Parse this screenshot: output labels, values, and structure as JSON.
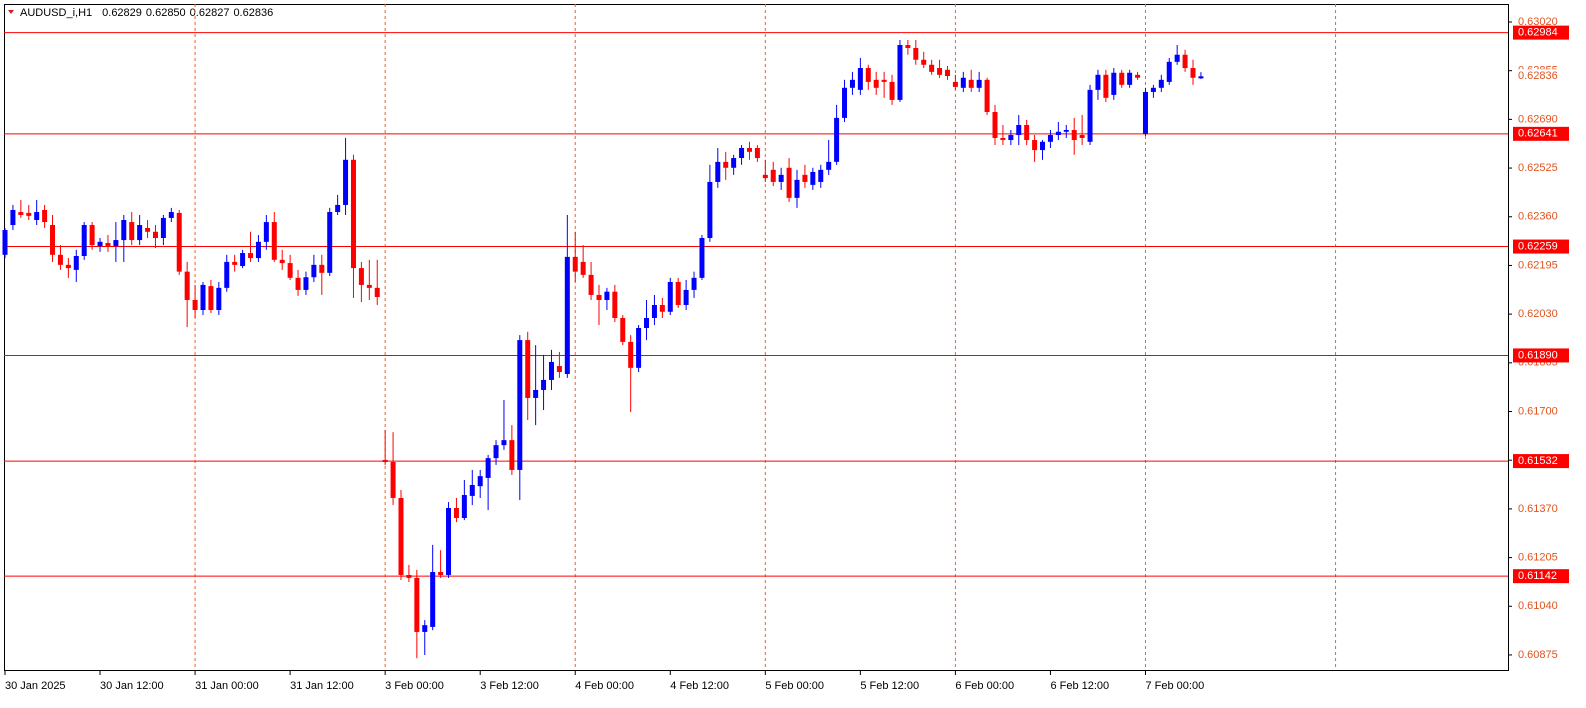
{
  "chart_data": {
    "type": "candlestick",
    "title": "AUDUSD_i,H1",
    "ohlc_labels": [
      "0.62829",
      "0.62850",
      "0.62827",
      "0.62836"
    ],
    "categories": [
      "30 Jan 2025",
      null,
      null,
      null,
      null,
      null,
      null,
      null,
      null,
      null,
      null,
      null,
      "30 Jan 12:00",
      null,
      null,
      null,
      null,
      null,
      null,
      null,
      null,
      null,
      null,
      null,
      "31 Jan 00:00",
      null,
      null,
      null,
      null,
      null,
      null,
      null,
      null,
      null,
      null,
      null,
      "31 Jan 12:00",
      null,
      null,
      null,
      null,
      null,
      null,
      null,
      null,
      null,
      null,
      null,
      "3 Feb 00:00",
      null,
      null,
      null,
      null,
      null,
      null,
      null,
      null,
      null,
      null,
      null,
      "3 Feb 12:00",
      null,
      null,
      null,
      null,
      null,
      null,
      null,
      null,
      null,
      null,
      null,
      "4 Feb 00:00",
      null,
      null,
      null,
      null,
      null,
      null,
      null,
      null,
      null,
      null,
      null,
      "4 Feb 12:00",
      null,
      null,
      null,
      null,
      null,
      null,
      null,
      null,
      null,
      null,
      null,
      "5 Feb 00:00",
      null,
      null,
      null,
      null,
      null,
      null,
      null,
      null,
      null,
      null,
      null,
      "5 Feb 12:00",
      null,
      null,
      null,
      null,
      null,
      null,
      null,
      null,
      null,
      null,
      null,
      "6 Feb 00:00",
      null,
      null,
      null,
      null,
      null,
      null,
      null,
      null,
      null,
      null,
      null,
      "6 Feb 12:00",
      null,
      null,
      null,
      null,
      null,
      null,
      null,
      null,
      null,
      null,
      null,
      "7 Feb 00:00",
      null,
      null,
      null,
      null,
      null,
      null,
      null
    ],
    "open": [
      0.62231,
      0.62332,
      0.62376,
      0.62373,
      0.62349,
      0.62383,
      0.62332,
      0.62231,
      0.62197,
      0.6218,
      0.62227,
      0.62332,
      0.62261,
      0.62271,
      0.62261,
      0.62281,
      0.62342,
      0.62281,
      0.62322,
      0.62309,
      0.62288,
      0.62356,
      0.62373,
      0.62174,
      0.62078,
      0.62044,
      0.62125,
      0.62044,
      0.62119,
      0.62207,
      0.62193,
      0.62237,
      0.6222,
      0.62275,
      0.62342,
      0.62214,
      0.62203,
      0.62153,
      0.62112,
      0.62155,
      0.62197,
      0.6217,
      0.62376,
      0.624,
      0.62553,
      0.62186,
      0.62129,
      0.62119,
      0.61536,
      0.61529,
      0.61407,
      0.61146,
      0.61136,
      0.60953,
      0.6097,
      0.61156,
      0.61146,
      0.61373,
      0.61339,
      0.61414,
      0.61447,
      0.61475,
      0.61542,
      0.61586,
      0.61603,
      0.61502,
      0.61942,
      0.61746,
      0.61773,
      0.61807,
      0.61854,
      0.61827,
      0.62224,
      0.62207,
      0.62163,
      0.62095,
      0.62078,
      0.62106,
      0.62017,
      0.61936,
      0.61848,
      0.61983,
      0.62017,
      0.62061,
      0.62038,
      0.62139,
      0.62061,
      0.62112,
      0.62153,
      0.62288,
      0.62478,
      0.62546,
      0.62526,
      0.62559,
      0.62593,
      0.62593,
      0.62502,
      0.62519,
      0.62478,
      0.62526,
      0.62424,
      0.62502,
      0.62468,
      0.62478,
      0.62519,
      0.62546,
      0.62695,
      0.62797,
      0.6279,
      0.62864,
      0.62824,
      0.62824,
      0.62817,
      0.62756,
      0.62942,
      0.62932,
      0.62892,
      0.62875,
      0.62864,
      0.62858,
      0.62817,
      0.62797,
      0.62824,
      0.62797,
      0.62824,
      0.62715,
      0.62627,
      0.6262,
      0.62637,
      0.62671,
      0.6262,
      0.62586,
      0.62614,
      0.62637,
      0.62648,
      0.62654,
      0.62637,
      0.62614,
      0.6279,
      0.62841,
      0.62773,
      0.62848,
      0.62807,
      0.62841,
      0.62641,
      0.62783,
      0.62797,
      0.62817,
      0.62885,
      0.62909,
      0.62864,
      0.62829
    ],
    "high": [
      0.62322,
      0.624,
      0.62417,
      0.624,
      0.62417,
      0.624,
      0.62366,
      0.62264,
      0.6222,
      0.62248,
      0.62342,
      0.62342,
      0.62288,
      0.62298,
      0.62342,
      0.62366,
      0.62376,
      0.62366,
      0.62349,
      0.62332,
      0.62366,
      0.6239,
      0.62383,
      0.62207,
      0.62129,
      0.62139,
      0.62146,
      0.62139,
      0.62231,
      0.62231,
      0.62248,
      0.62309,
      0.62298,
      0.62366,
      0.62376,
      0.62248,
      0.62231,
      0.6218,
      0.62174,
      0.62231,
      0.62231,
      0.6239,
      0.62434,
      0.62627,
      0.6257,
      0.62207,
      0.62214,
      0.62214,
      0.61637,
      0.6163,
      0.61434,
      0.6118,
      0.61163,
      0.60993,
      0.61248,
      0.6123,
      0.61393,
      0.61407,
      0.61468,
      0.61502,
      0.61502,
      0.61553,
      0.61603,
      0.61739,
      0.61654,
      0.61959,
      0.6197,
      0.61925,
      0.61892,
      0.61909,
      0.61902,
      0.62366,
      0.62309,
      0.62264,
      0.62207,
      0.62129,
      0.62119,
      0.62129,
      0.62027,
      0.61959,
      0.61993,
      0.62078,
      0.62095,
      0.62085,
      0.62153,
      0.62153,
      0.62146,
      0.62174,
      0.62298,
      0.62536,
      0.62593,
      0.6258,
      0.6257,
      0.62603,
      0.62614,
      0.62603,
      0.62553,
      0.62546,
      0.62526,
      0.62559,
      0.62519,
      0.62536,
      0.62526,
      0.62536,
      0.6262,
      0.62739,
      0.62824,
      0.62851,
      0.62898,
      0.62875,
      0.62851,
      0.62851,
      0.62841,
      0.62959,
      0.62959,
      0.62959,
      0.62919,
      0.62892,
      0.62892,
      0.62871,
      0.62841,
      0.62851,
      0.62858,
      0.62851,
      0.62831,
      0.62739,
      0.62671,
      0.62654,
      0.62705,
      0.62688,
      0.62637,
      0.6262,
      0.62654,
      0.62681,
      0.62671,
      0.62695,
      0.62705,
      0.62807,
      0.62858,
      0.62858,
      0.62864,
      0.62858,
      0.62858,
      0.62851,
      0.62797,
      0.62807,
      0.62841,
      0.62898,
      0.62942,
      0.62926,
      0.62892,
      0.6285
    ],
    "low": [
      0.6222,
      0.62315,
      0.62356,
      0.62349,
      0.62332,
      0.62322,
      0.62207,
      0.6218,
      0.62153,
      0.62139,
      0.62214,
      0.62248,
      0.62241,
      0.62241,
      0.62207,
      0.62207,
      0.62264,
      0.62264,
      0.62288,
      0.62254,
      0.62264,
      0.62342,
      0.62163,
      0.61986,
      0.62017,
      0.62027,
      0.62034,
      0.62027,
      0.62106,
      0.62174,
      0.62186,
      0.62207,
      0.62207,
      0.62248,
      0.62207,
      0.6218,
      0.62146,
      0.62092,
      0.62095,
      0.62139,
      0.62095,
      0.62159,
      0.62366,
      0.62366,
      0.62085,
      0.62071,
      0.62078,
      0.62061,
      0.61519,
      0.61383,
      0.61129,
      0.61122,
      0.60864,
      0.60875,
      0.60959,
      0.61136,
      0.61136,
      0.61325,
      0.61332,
      0.61383,
      0.61407,
      0.61366,
      0.61519,
      0.6157,
      0.61485,
      0.614,
      0.61671,
      0.61654,
      0.61705,
      0.61773,
      0.61814,
      0.61814,
      0.62139,
      0.62153,
      0.62078,
      0.61993,
      0.62044,
      0.62003,
      0.61925,
      0.61698,
      0.61834,
      0.61942,
      0.61993,
      0.62017,
      0.62027,
      0.62051,
      0.62044,
      0.62085,
      0.62146,
      0.62275,
      0.62458,
      0.62485,
      0.62502,
      0.62536,
      0.62553,
      0.62546,
      0.62478,
      0.62464,
      0.62451,
      0.6241,
      0.6239,
      0.62458,
      0.62451,
      0.62458,
      0.62502,
      0.62536,
      0.62681,
      0.62773,
      0.62773,
      0.6279,
      0.62773,
      0.62763,
      0.62739,
      0.62749,
      0.62909,
      0.62875,
      0.62864,
      0.62841,
      0.62831,
      0.62824,
      0.6279,
      0.62783,
      0.62783,
      0.62783,
      0.62705,
      0.62603,
      0.62603,
      0.62603,
      0.62603,
      0.62603,
      0.62546,
      0.62553,
      0.62593,
      0.6262,
      0.62627,
      0.6257,
      0.62603,
      0.62603,
      0.62756,
      0.62749,
      0.62756,
      0.62797,
      0.62797,
      0.62824,
      0.62634,
      0.62763,
      0.62783,
      0.62807,
      0.62875,
      0.62851,
      0.62807,
      0.62827
    ],
    "close": [
      0.62315,
      0.62383,
      0.62366,
      0.62363,
      0.62376,
      0.62342,
      0.62231,
      0.62197,
      0.62186,
      0.62227,
      0.62332,
      0.62264,
      0.62275,
      0.62261,
      0.62281,
      0.62349,
      0.62281,
      0.62332,
      0.62309,
      0.62288,
      0.62356,
      0.62376,
      0.62174,
      0.62078,
      0.62044,
      0.62129,
      0.62044,
      0.62119,
      0.62207,
      0.62197,
      0.62237,
      0.6222,
      0.62275,
      0.62342,
      0.62214,
      0.62203,
      0.62153,
      0.62112,
      0.62155,
      0.62197,
      0.6217,
      0.62376,
      0.624,
      0.62553,
      0.62186,
      0.62129,
      0.62119,
      0.62088,
      0.61529,
      0.61407,
      0.61146,
      0.61136,
      0.60953,
      0.60976,
      0.61156,
      0.61146,
      0.61373,
      0.61339,
      0.61417,
      0.61451,
      0.61481,
      0.61542,
      0.61586,
      0.61603,
      0.61502,
      0.61942,
      0.61746,
      0.61773,
      0.61807,
      0.61868,
      0.61834,
      0.62224,
      0.62174,
      0.62163,
      0.62095,
      0.62078,
      0.62106,
      0.62017,
      0.61936,
      0.61848,
      0.61983,
      0.62017,
      0.62061,
      0.62038,
      0.62139,
      0.62061,
      0.62112,
      0.62153,
      0.62288,
      0.62478,
      0.62546,
      0.62526,
      0.62559,
      0.62593,
      0.6258,
      0.62559,
      0.62491,
      0.62478,
      0.62502,
      0.62424,
      0.62485,
      0.62478,
      0.62512,
      0.62519,
      0.62546,
      0.62695,
      0.62797,
      0.62824,
      0.62864,
      0.62817,
      0.62797,
      0.62817,
      0.62756,
      0.62942,
      0.62932,
      0.62892,
      0.62875,
      0.62851,
      0.62841,
      0.62837,
      0.628,
      0.62831,
      0.62797,
      0.62824,
      0.62715,
      0.62627,
      0.6262,
      0.62637,
      0.62671,
      0.6262,
      0.62586,
      0.62614,
      0.62637,
      0.62648,
      0.62654,
      0.6262,
      0.62627,
      0.6279,
      0.62841,
      0.62763,
      0.62848,
      0.62807,
      0.62848,
      0.62831,
      0.62783,
      0.62797,
      0.62824,
      0.62885,
      0.62909,
      0.62864,
      0.62831,
      0.62836
    ],
    "up_color": "#0000ff",
    "down_color": "#ff0000",
    "hlines": [
      0.62984,
      0.62641,
      0.62259,
      {
        "value": 0.6189,
        "label": "0.61890"
      },
      0.61532,
      0.61142
    ],
    "hline_color": "#ff0000",
    "ylim": [
      0.60824,
      0.63081
    ],
    "yticks": [
      {
        "value": 0.6302,
        "label": "0.63020"
      },
      0.62855,
      {
        "value": 0.6269,
        "label": "0.62690"
      },
      0.62525,
      {
        "value": 0.6236,
        "label": "0.62360"
      },
      0.62195,
      {
        "value": 0.6203,
        "label": "0.62030"
      },
      0.61865,
      {
        "value": 0.617,
        "label": "0.61700"
      },
      0.61535,
      {
        "value": 0.6137,
        "label": "0.61370"
      },
      0.61205,
      {
        "value": 0.6104,
        "label": "0.61040"
      },
      0.60875
    ],
    "grid": true,
    "grid_color": "#ff5a1f"
  }
}
